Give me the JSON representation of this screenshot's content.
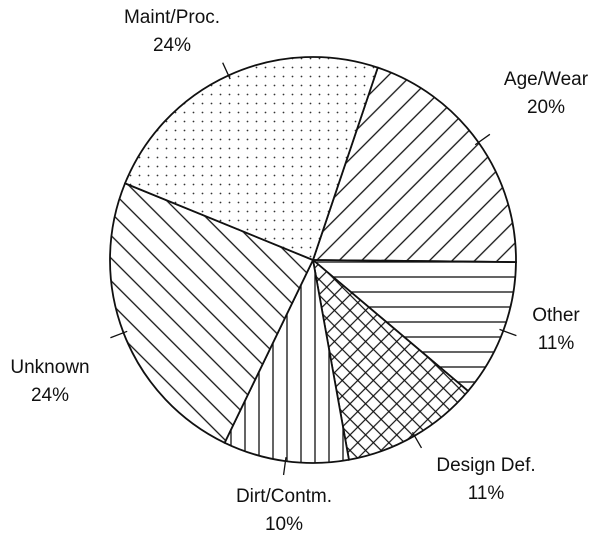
{
  "chart_data": {
    "type": "pie",
    "categories": [
      "Age/Wear",
      "Other",
      "Design Def.",
      "Dirt/Contm.",
      "Unknown",
      "Maint/Proc."
    ],
    "values": [
      20,
      11,
      11,
      10,
      24,
      24
    ],
    "value_labels": [
      "20%",
      "11%",
      "11%",
      "10%",
      "24%",
      "24%"
    ]
  }
}
